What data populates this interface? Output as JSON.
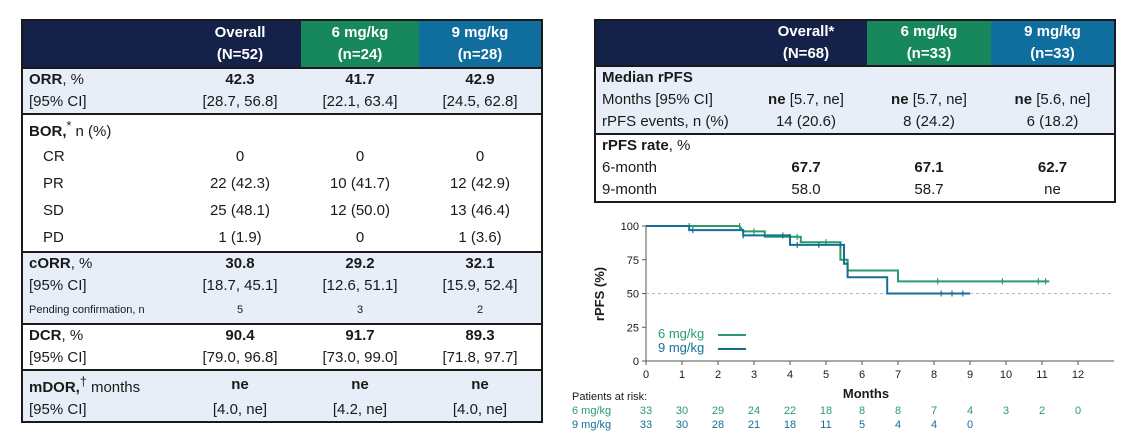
{
  "left_table": {
    "headers": [
      "Overall",
      "(N=52)",
      "6 mg/kg",
      "(n=24)",
      "9 mg/kg",
      "(n=28)"
    ],
    "orr": {
      "label": "ORR",
      "unit": ", %",
      "values": [
        "42.3",
        "41.7",
        "42.9"
      ],
      "ci_label": "[95% CI]",
      "ci": [
        "[28.7, 56.8]",
        "[22.1, 63.4]",
        "[24.5, 62.8]"
      ]
    },
    "bor": {
      "label": "BOR,",
      "sup": "*",
      "unit": " n (%)",
      "rows": [
        {
          "label": "CR",
          "values": [
            "0",
            "0",
            "0"
          ]
        },
        {
          "label": "PR",
          "values": [
            "22 (42.3)",
            "10 (41.7)",
            "12 (42.9)"
          ]
        },
        {
          "label": "SD",
          "values": [
            "25 (48.1)",
            "12 (50.0)",
            "13 (46.4)"
          ]
        },
        {
          "label": "PD",
          "values": [
            "1 (1.9)",
            "0",
            "1 (3.6)"
          ]
        }
      ]
    },
    "corr": {
      "label": "cORR",
      "unit": ", %",
      "values": [
        "30.8",
        "29.2",
        "32.1"
      ],
      "ci_label": "[95% CI]",
      "ci": [
        "[18.7, 45.1]",
        "[12.6, 51.1]",
        "[15.9, 52.4]"
      ],
      "pending_label": "Pending confirmation, n",
      "pending": [
        "5",
        "3",
        "2"
      ]
    },
    "dcr": {
      "label": "DCR",
      "unit": ", %",
      "values": [
        "90.4",
        "91.7",
        "89.3"
      ],
      "ci_label": "[95% CI]",
      "ci": [
        "[79.0, 96.8]",
        "[73.0, 99.0]",
        "[71.8, 97.7]"
      ]
    },
    "mdor": {
      "label": "mDOR,",
      "sup": "†",
      "unit": " months",
      "values": [
        "ne",
        "ne",
        "ne"
      ],
      "ci_label": "[95% CI]",
      "ci": [
        "[4.0, ne]",
        "[4.2, ne]",
        "[4.0, ne]"
      ]
    }
  },
  "right_table": {
    "headers": [
      "Overall*",
      "(N=68)",
      "6 mg/kg",
      "(n=33)",
      "9 mg/kg",
      "(n=33)"
    ],
    "median_title": "Median rPFS",
    "months_label": "Months [95% CI]",
    "months": [
      {
        "ne": "ne",
        "ci": "[5.7, ne]"
      },
      {
        "ne": "ne",
        "ci": "[5.7, ne]"
      },
      {
        "ne": "ne",
        "ci": "[5.6, ne]"
      }
    ],
    "events_label": "rPFS events, n (%)",
    "events": [
      "14 (20.6)",
      "8 (24.2)",
      "6 (18.2)"
    ],
    "rate_title": "rPFS rate",
    "rate_unit": ", %",
    "m6_label": "6-month",
    "m6": [
      "67.7",
      "67.1",
      "62.7"
    ],
    "m9_label": "9-month",
    "m9": [
      "58.0",
      "58.7",
      "ne"
    ]
  },
  "chart_data": {
    "type": "line",
    "title": "",
    "xlabel": "Months",
    "ylabel": "rPFS (%)",
    "xlim": [
      0,
      12
    ],
    "ylim": [
      0,
      100
    ],
    "xticks": [
      "0",
      "1",
      "2",
      "3",
      "4",
      "5",
      "6",
      "7",
      "8",
      "9",
      "10",
      "11",
      "12"
    ],
    "yticks": [
      "0",
      "25",
      "50",
      "75",
      "100"
    ],
    "reference_line": 50,
    "series": [
      {
        "name": "6 mg/kg",
        "color": "#2a9a6a",
        "steps": [
          [
            0,
            100
          ],
          [
            1.2,
            100
          ],
          [
            2.6,
            100
          ],
          [
            2.7,
            96
          ],
          [
            3.0,
            96
          ],
          [
            3.3,
            96
          ],
          [
            3.3,
            92
          ],
          [
            4.0,
            92
          ],
          [
            4.3,
            92
          ],
          [
            4.3,
            88
          ],
          [
            5.0,
            88
          ],
          [
            5.4,
            88
          ],
          [
            5.4,
            75
          ],
          [
            5.6,
            75
          ],
          [
            5.6,
            67
          ],
          [
            7.0,
            67
          ],
          [
            7.0,
            59
          ],
          [
            11.2,
            59
          ]
        ],
        "censors": [
          1.2,
          2.6,
          3.0,
          4.0,
          4.2,
          5.0,
          5.5,
          8.1,
          9.9,
          10.9,
          11.1
        ]
      },
      {
        "name": "9 mg/kg",
        "color": "#146f95",
        "steps": [
          [
            0,
            100
          ],
          [
            1.2,
            100
          ],
          [
            1.2,
            97
          ],
          [
            2.7,
            97
          ],
          [
            2.7,
            93
          ],
          [
            4.0,
            93
          ],
          [
            4.0,
            86
          ],
          [
            5.5,
            86
          ],
          [
            5.5,
            72
          ],
          [
            5.6,
            72
          ],
          [
            5.6,
            62
          ],
          [
            6.7,
            62
          ],
          [
            6.7,
            50
          ],
          [
            9.0,
            50
          ]
        ],
        "censors": [
          1.3,
          2.7,
          3.8,
          4.2,
          4.8,
          5.4,
          8.2,
          8.5,
          8.8
        ]
      }
    ],
    "risk_table": {
      "label": "Patients at risk:",
      "rows": [
        {
          "name": "6 mg/kg",
          "counts": [
            "33",
            "30",
            "29",
            "24",
            "22",
            "18",
            "8",
            "8",
            "7",
            "4",
            "3",
            "2",
            "0"
          ]
        },
        {
          "name": "9 mg/kg",
          "counts": [
            "33",
            "30",
            "28",
            "21",
            "18",
            "11",
            "5",
            "4",
            "4",
            "0"
          ]
        }
      ]
    }
  },
  "colors": {
    "navy": "#14224a",
    "green": "#17875e",
    "blue": "#106e9e",
    "shade": "#e7eef8"
  }
}
